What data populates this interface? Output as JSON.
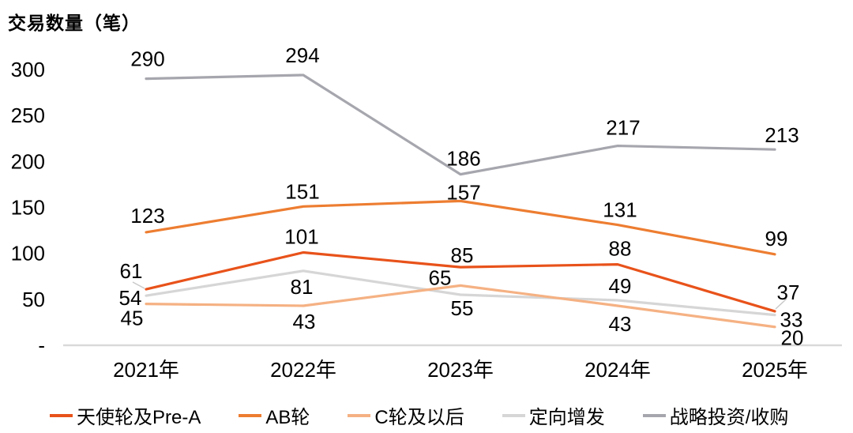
{
  "title": "交易数量（笔）",
  "y_axis": {
    "tick_labels": [
      "300",
      "250",
      "200",
      "150",
      "100",
      "50",
      "-"
    ],
    "tick_values": [
      300,
      250,
      200,
      150,
      100,
      50,
      0
    ]
  },
  "x_axis": {
    "labels": [
      "2021年",
      "2022年",
      "2023年",
      "2024年",
      "2025年"
    ]
  },
  "chart_data": {
    "type": "line",
    "title": "交易数量（笔）",
    "categories": [
      "2021年",
      "2022年",
      "2023年",
      "2024年",
      "2025年"
    ],
    "series": [
      {
        "name": "天使轮及Pre-A",
        "color": "#E8521A",
        "values": [
          61,
          101,
          85,
          88,
          37
        ]
      },
      {
        "name": "AB轮",
        "color": "#ED7D31",
        "values": [
          123,
          151,
          157,
          131,
          99
        ]
      },
      {
        "name": "C轮及以后",
        "color": "#F5B183",
        "values": [
          45,
          43,
          65,
          43,
          20
        ]
      },
      {
        "name": "定向增发",
        "color": "#D6D6D6",
        "values": [
          54,
          81,
          55,
          49,
          33
        ]
      },
      {
        "name": "战略投资/收购",
        "color": "#A6A6AE",
        "values": [
          290,
          294,
          186,
          217,
          213
        ]
      }
    ],
    "ylim": [
      0,
      300
    ],
    "grid": false,
    "legend_position": "bottom",
    "axis_line_color": "#D9D9D9",
    "label_color": "#000000"
  }
}
